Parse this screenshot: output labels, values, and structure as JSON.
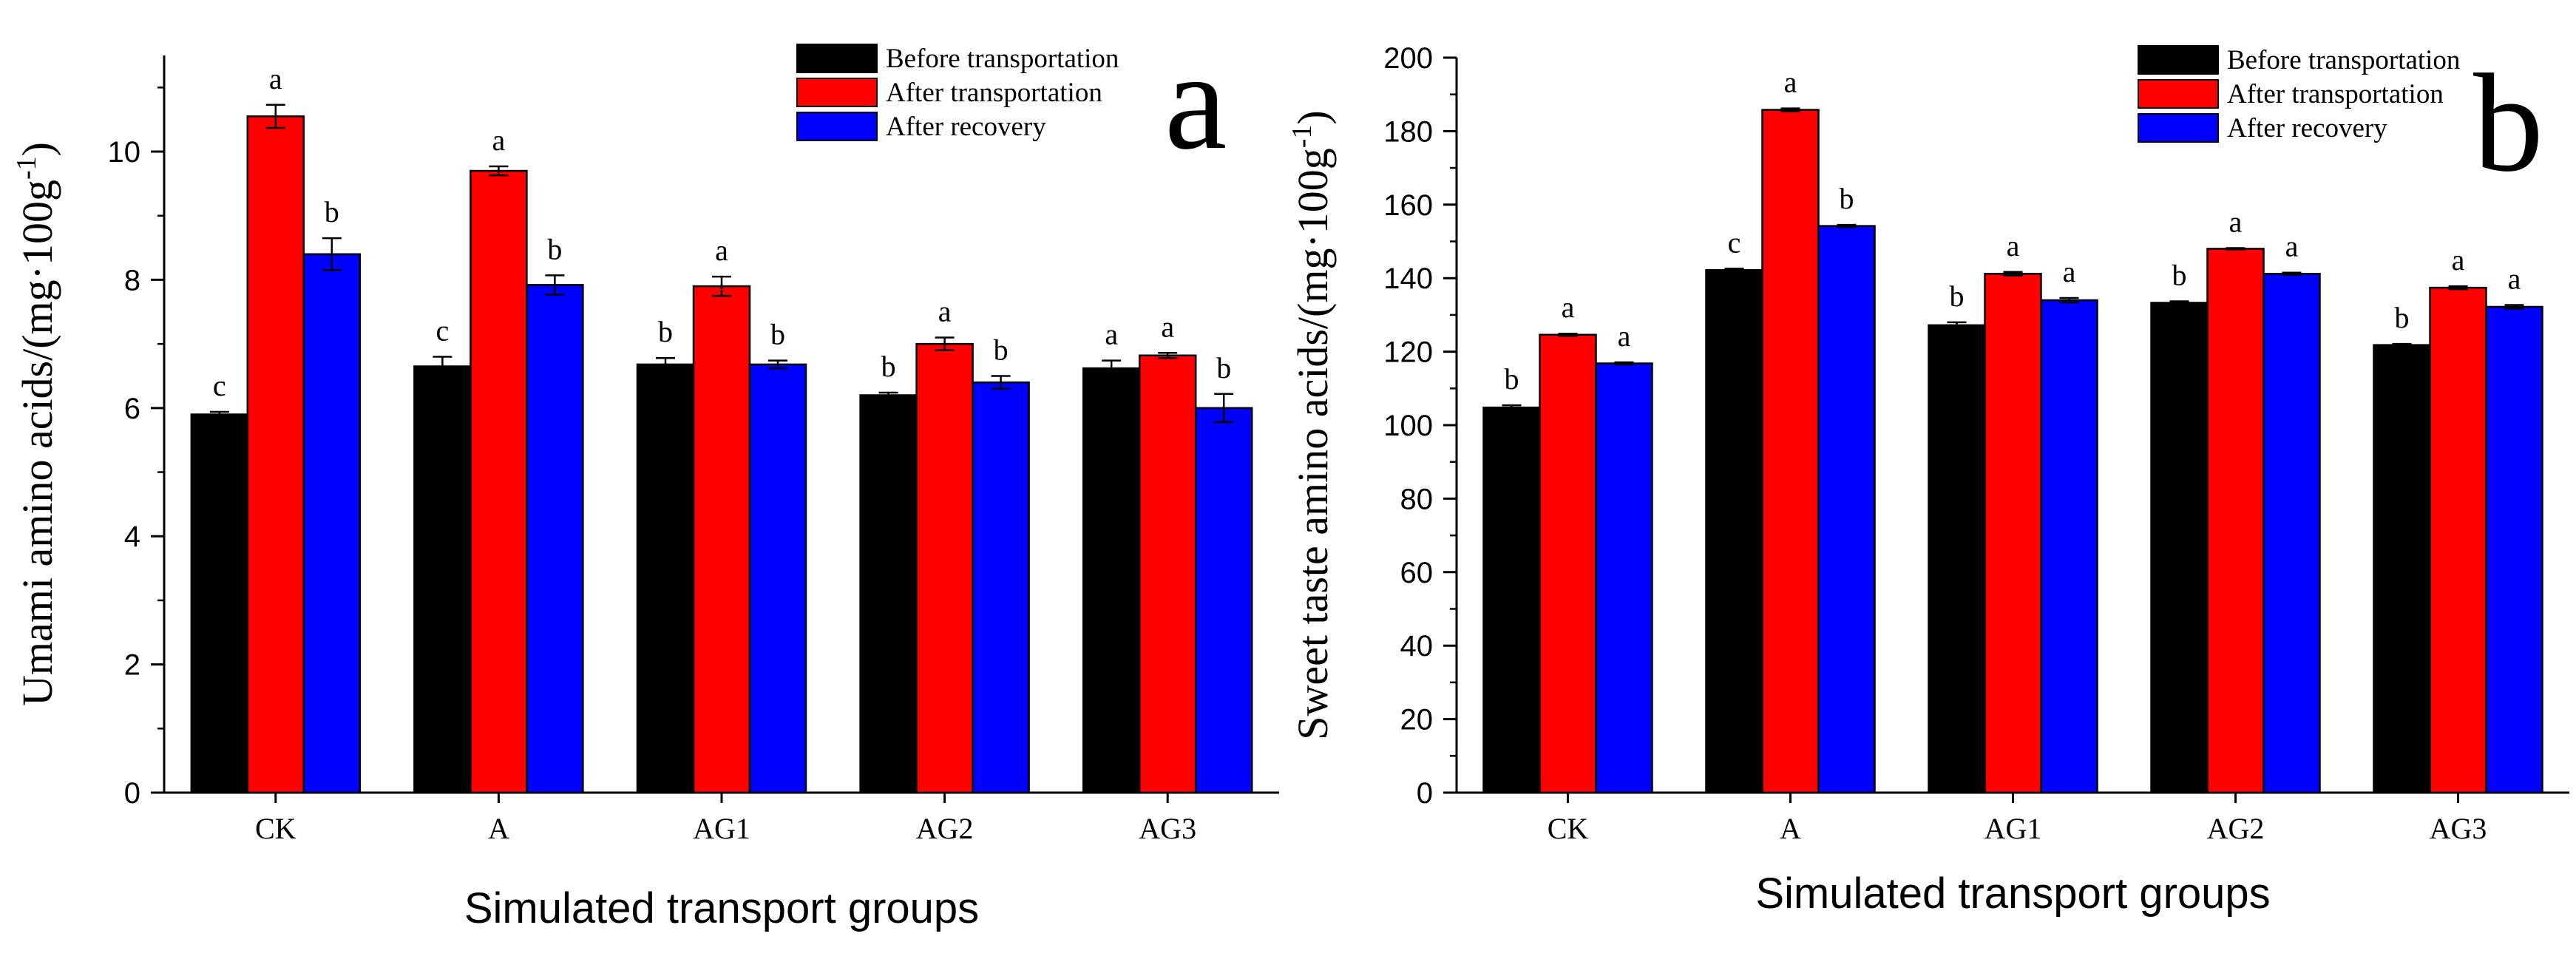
{
  "colors": {
    "before": "#000000",
    "after": "#ff0000",
    "recovery": "#0000ff"
  },
  "chart_data": [
    {
      "type": "bar",
      "panel_letter": "a",
      "ylabel_main": "Umami amino acids/(mg·100g",
      "ylabel_exp": "-1",
      "ylabel_close": ")",
      "xlabel": "Simulated transport groups",
      "categories": [
        "CK",
        "A",
        "AG1",
        "AG2",
        "AG3"
      ],
      "ylim": [
        0,
        11.5
      ],
      "yticks": [
        0,
        2,
        4,
        6,
        8,
        10
      ],
      "series": [
        {
          "name": "Before transportation",
          "color_key": "before",
          "values": [
            5.9,
            6.65,
            6.68,
            6.2,
            6.62
          ],
          "errors": [
            0.04,
            0.15,
            0.1,
            0.04,
            0.12
          ],
          "letters": [
            "c",
            "c",
            "b",
            "b",
            "a"
          ]
        },
        {
          "name": "After transportation",
          "color_key": "after",
          "values": [
            10.55,
            9.7,
            7.9,
            7.0,
            6.82
          ],
          "errors": [
            0.18,
            0.07,
            0.15,
            0.1,
            0.04
          ],
          "letters": [
            "a",
            "a",
            "a",
            "a",
            "a"
          ]
        },
        {
          "name": "After recovery",
          "color_key": "recovery",
          "values": [
            8.4,
            7.92,
            6.68,
            6.4,
            6.0
          ],
          "errors": [
            0.25,
            0.15,
            0.06,
            0.1,
            0.22
          ],
          "letters": [
            "b",
            "b",
            "b",
            "b",
            "b"
          ]
        }
      ]
    },
    {
      "type": "bar",
      "panel_letter": "b",
      "ylabel_main": "Sweet taste amino acids/(mg·100g",
      "ylabel_exp": "-1",
      "ylabel_close": ")",
      "xlabel": "Simulated transport groups",
      "categories": [
        "CK",
        "A",
        "AG1",
        "AG2",
        "AG3"
      ],
      "ylim": [
        0,
        200
      ],
      "yticks": [
        0,
        20,
        40,
        60,
        80,
        100,
        120,
        140,
        160,
        180,
        200
      ],
      "series": [
        {
          "name": "Before transportation",
          "color_key": "before",
          "values": [
            104.8,
            142.2,
            127.2,
            133.3,
            121.8
          ],
          "errors": [
            0.6,
            0.4,
            0.8,
            0.4,
            0.3
          ],
          "letters": [
            "b",
            "c",
            "b",
            "b",
            "b"
          ]
        },
        {
          "name": "After transportation",
          "color_key": "after",
          "values": [
            124.6,
            185.8,
            141.2,
            148.0,
            137.4
          ],
          "errors": [
            0.3,
            0.4,
            0.5,
            0.2,
            0.4
          ],
          "letters": [
            "a",
            "a",
            "a",
            "a",
            "a"
          ]
        },
        {
          "name": "After recovery",
          "color_key": "recovery",
          "values": [
            116.8,
            154.2,
            134.0,
            141.2,
            132.2
          ],
          "errors": [
            0.3,
            0.3,
            0.6,
            0.3,
            0.5
          ],
          "letters": [
            "a",
            "b",
            "a",
            "a",
            "a"
          ]
        }
      ]
    }
  ]
}
